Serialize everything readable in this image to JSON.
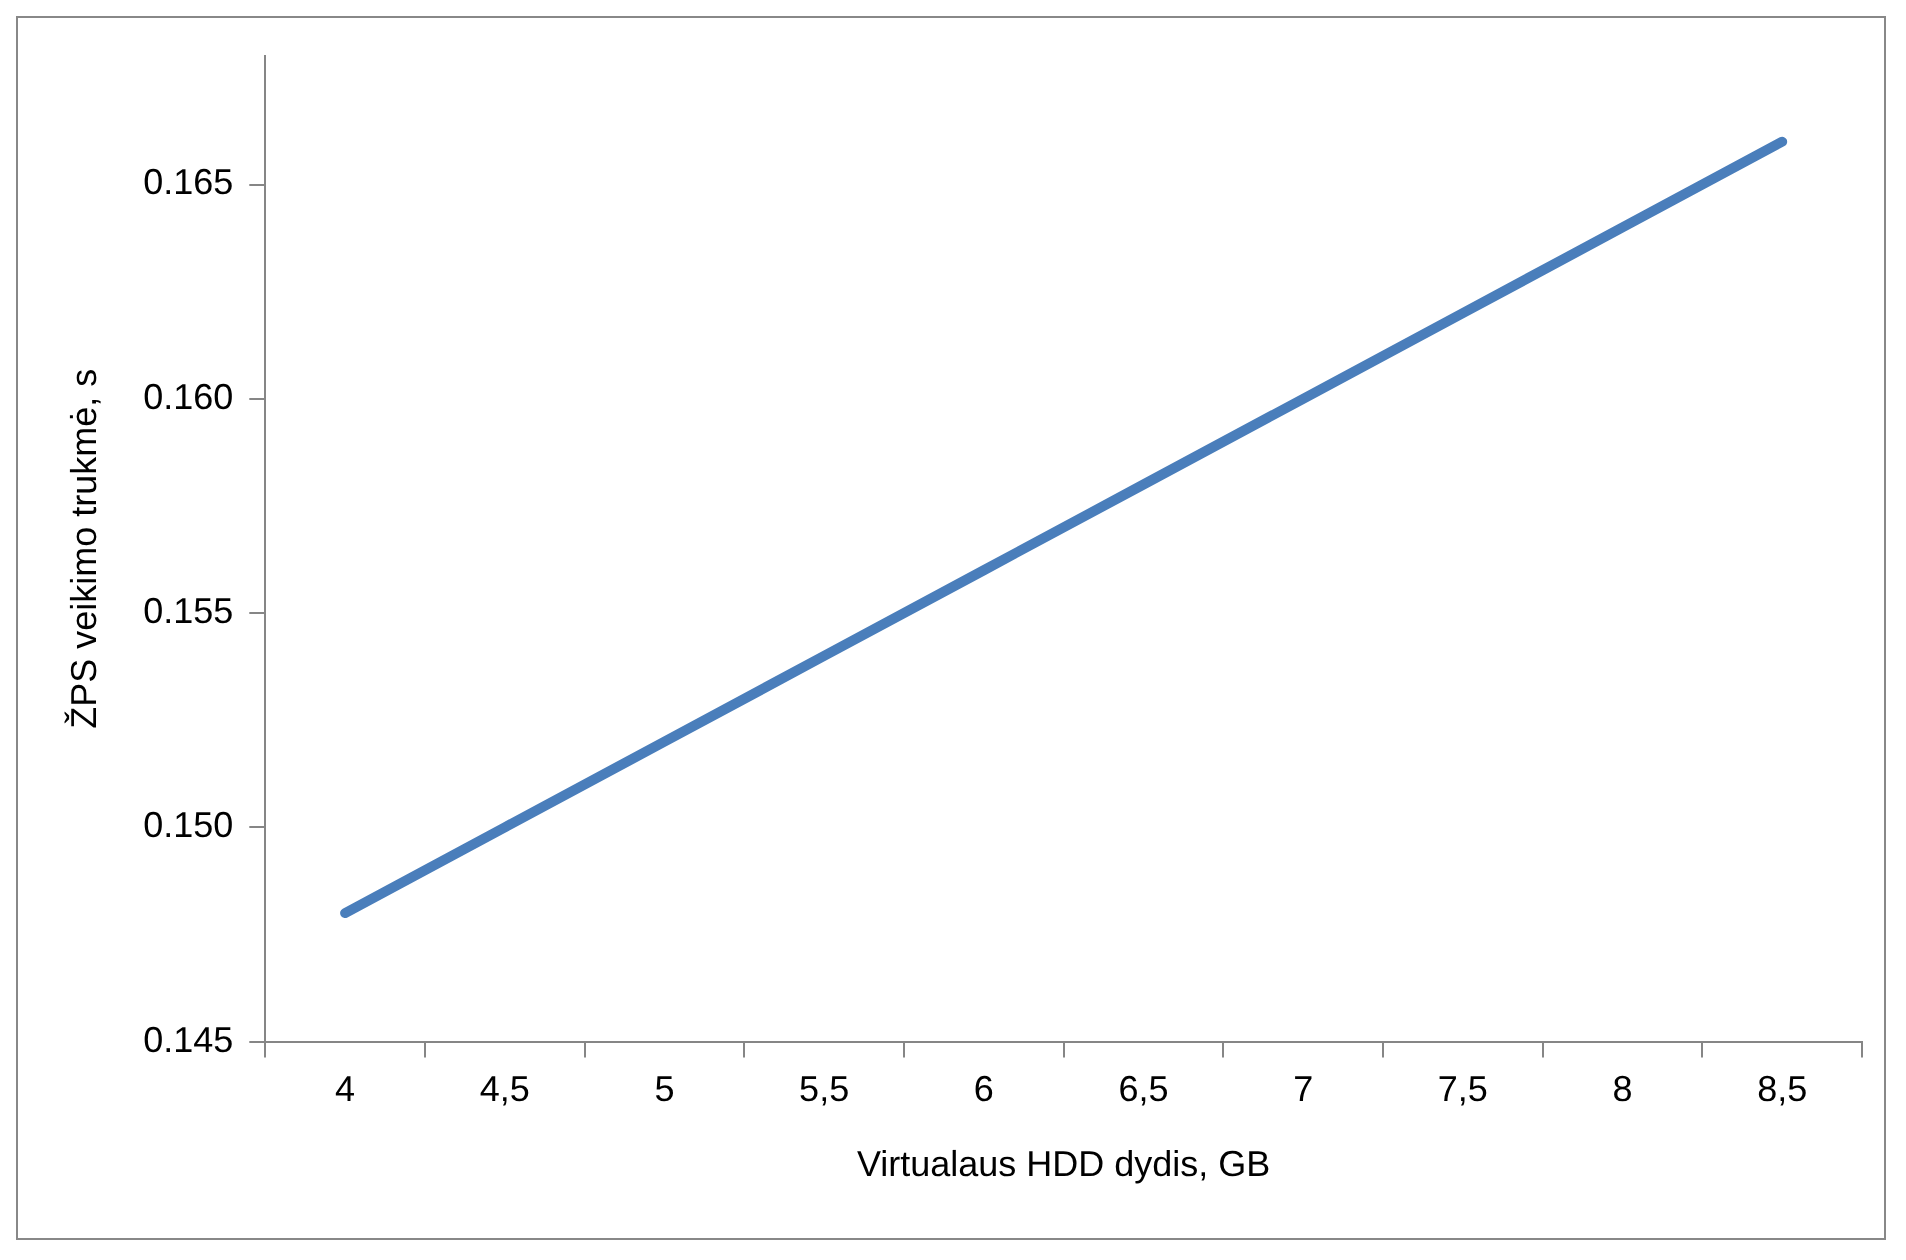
{
  "chart_data": {
    "type": "line",
    "xlabel": "Virtualaus HDD dydis, GB",
    "ylabel": "ŽPS veikimo trukmė, s",
    "categories": [
      "4",
      "4,5",
      "5",
      "5,5",
      "6",
      "6,5",
      "7",
      "7,5",
      "8",
      "8,5"
    ],
    "series": [
      {
        "color": "#4a7ebb",
        "values": [
          0.148,
          0.15,
          0.152,
          0.154,
          0.156,
          0.158,
          0.16,
          0.162,
          0.164,
          0.166
        ]
      }
    ],
    "ylim": [
      0.145,
      0.168
    ],
    "yticks": [
      0.145,
      {
        "value": 0.15,
        "label": "0.150"
      },
      0.155,
      {
        "value": 0.16,
        "label": "0.160"
      },
      0.165
    ],
    "marker": "none",
    "line_style": "solid"
  }
}
